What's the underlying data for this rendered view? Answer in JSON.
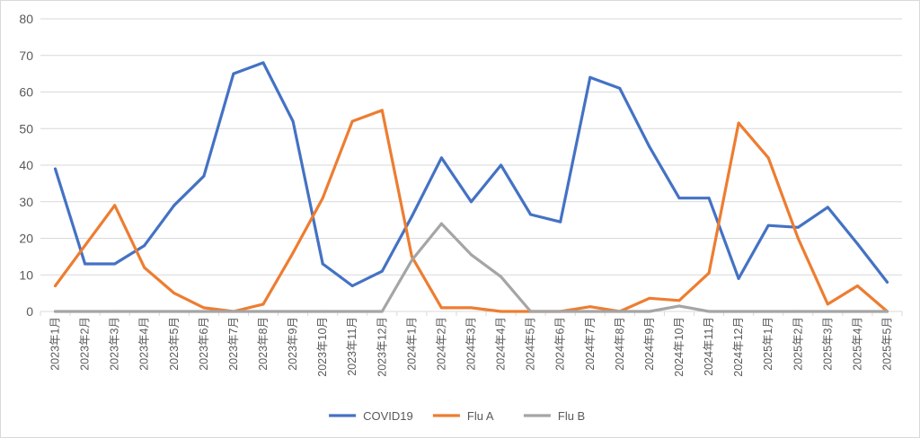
{
  "chart_data": {
    "type": "line",
    "title": "",
    "xlabel": "",
    "ylabel": "",
    "ylim": [
      0,
      80
    ],
    "yticks": [
      0,
      10,
      20,
      30,
      40,
      50,
      60,
      70,
      80
    ],
    "grid": true,
    "legend_position": "bottom",
    "categories": [
      "2023年1月",
      "2023年2月",
      "2023年3月",
      "2023年4月",
      "2023年5月",
      "2023年6月",
      "2023年7月",
      "2023年8月",
      "2023年9月",
      "2023年10月",
      "2023年11月",
      "2023年12月",
      "2024年1月",
      "2024年2月",
      "2024年3月",
      "2024年4月",
      "2024年5月",
      "2024年6月",
      "2024年7月",
      "2024年8月",
      "2024年9月",
      "2024年10月",
      "2024年11月",
      "2024年12月",
      "2025年1月",
      "2025年2月",
      "2025年3月",
      "2025年4月",
      "2025年5月"
    ],
    "series": [
      {
        "name": "COVID19",
        "color": "#4472C4",
        "values": [
          39,
          13,
          13,
          18,
          29,
          37,
          65,
          68,
          52,
          13,
          7,
          11,
          26,
          42,
          30,
          40,
          26.5,
          24.5,
          64,
          61,
          45,
          31,
          31,
          9,
          23.5,
          23,
          28.5,
          18.5,
          8
        ]
      },
      {
        "name": "Flu A",
        "color": "#ED7D31",
        "values": [
          7,
          18,
          29,
          12,
          5,
          1,
          0,
          2,
          16,
          31,
          52,
          55,
          15,
          1,
          1,
          0,
          0,
          0,
          1.3,
          0,
          3.6,
          3,
          10.5,
          51.5,
          42,
          20,
          2,
          7,
          0
        ]
      },
      {
        "name": "Flu B",
        "color": "#A5A5A5",
        "values": [
          0,
          0,
          0,
          0,
          0,
          0,
          0,
          0,
          0,
          0,
          0,
          0,
          14,
          24,
          15.5,
          9.5,
          0,
          0,
          0,
          0,
          0,
          1.5,
          0,
          0,
          0,
          0,
          0,
          0,
          0
        ]
      }
    ]
  }
}
